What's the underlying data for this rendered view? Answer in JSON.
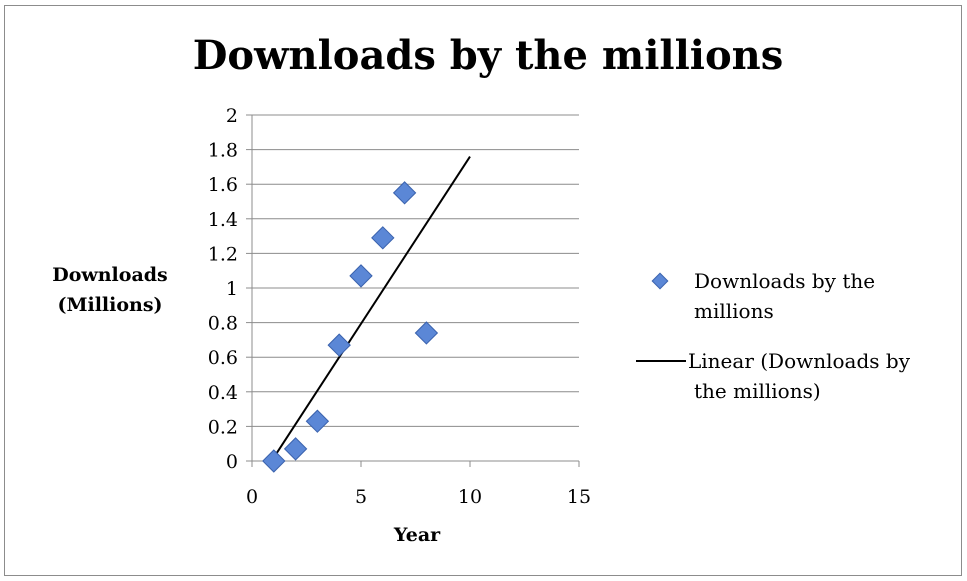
{
  "chart_data": {
    "type": "scatter",
    "title": "Downloads by the millions",
    "xlabel": "Year",
    "ylabel": [
      "Downloads",
      "(Millions)"
    ],
    "xlim": [
      0,
      15
    ],
    "ylim": [
      0,
      2
    ],
    "x_ticks": [
      0,
      5,
      10,
      15
    ],
    "y_ticks": [
      0,
      0.2,
      0.4,
      0.6,
      0.8,
      1,
      1.2,
      1.4,
      1.6,
      1.8,
      2
    ],
    "grid": "horizontal",
    "legend_position": "right",
    "series": [
      {
        "name": "Downloads by the millions",
        "marker": "diamond",
        "color": "#5b87d6",
        "points": [
          {
            "x": 1,
            "y": 0.0
          },
          {
            "x": 2,
            "y": 0.07
          },
          {
            "x": 3,
            "y": 0.23
          },
          {
            "x": 4,
            "y": 0.67
          },
          {
            "x": 5,
            "y": 1.07
          },
          {
            "x": 6,
            "y": 1.29
          },
          {
            "x": 7,
            "y": 1.55
          },
          {
            "x": 8,
            "y": 0.74
          }
        ]
      }
    ],
    "trendline": {
      "name": "Linear (Downloads by the millions)",
      "type": "linear",
      "color": "#000000",
      "x_range": [
        1,
        10
      ],
      "y_range": [
        0.02,
        1.76
      ]
    },
    "legend": [
      {
        "lines": [
          "Downloads by the",
          "millions"
        ],
        "marker": "diamond"
      },
      {
        "lines": [
          "Linear (Downloads by",
          "the millions)"
        ],
        "marker": "line"
      }
    ]
  }
}
